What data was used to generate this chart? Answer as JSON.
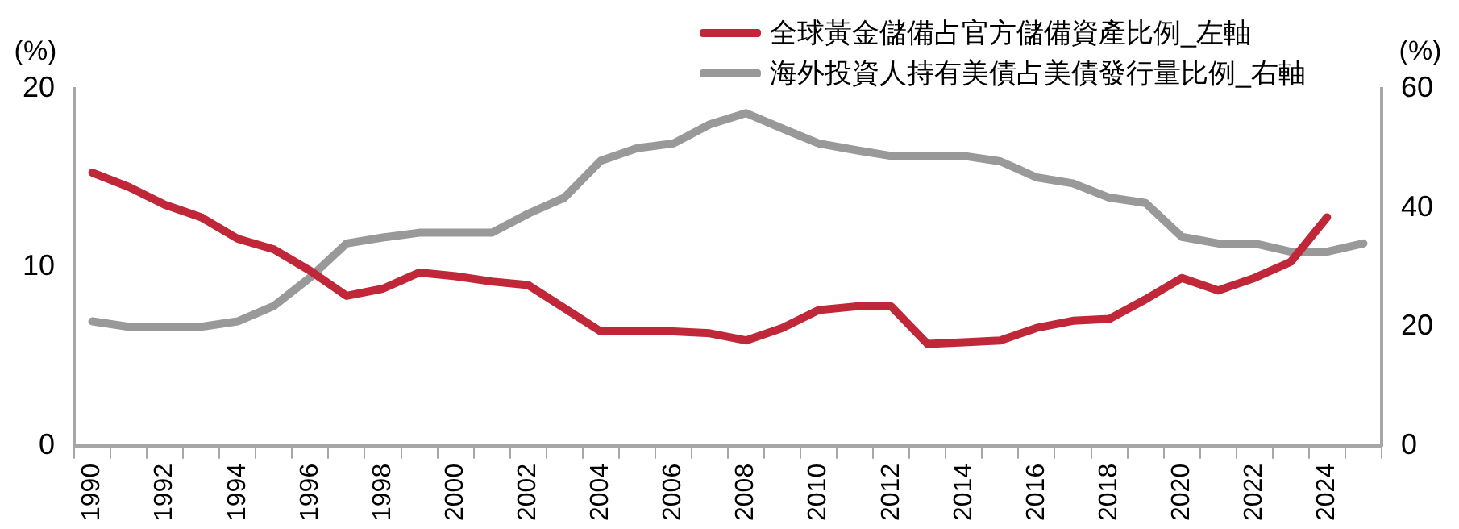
{
  "chart_data": {
    "type": "line",
    "categories": [
      "1990",
      null,
      "1992",
      null,
      "1994",
      null,
      "1996",
      null,
      "1998",
      null,
      "2000",
      null,
      "2002",
      null,
      "2004",
      null,
      "2006",
      null,
      "2008",
      null,
      "2010",
      null,
      "2012",
      null,
      "2014",
      null,
      "2016",
      null,
      "2018",
      null,
      "2020",
      null,
      "2022",
      null,
      "2024",
      null
    ],
    "series": [
      {
        "name": "全球黃金儲備占官方儲備資產比例_左軸",
        "color": "#c0283a",
        "values": [
          15.3,
          14.5,
          13.5,
          12.8,
          11.6,
          11.0,
          9.8,
          8.4,
          8.8,
          9.7,
          9.5,
          9.2,
          9.0,
          7.7,
          6.4,
          6.4,
          6.4,
          6.3,
          5.9,
          6.6,
          7.6,
          7.8,
          7.8,
          5.7,
          5.8,
          5.9,
          6.6,
          7.0,
          7.1,
          8.2,
          9.4,
          8.7,
          9.4,
          10.3,
          12.8,
          null
        ]
      },
      {
        "name": "海外投資人持有美債占美債發行量比例_右軸",
        "color": "#999999",
        "axis": "y2",
        "values": [
          20.9,
          20.0,
          20.0,
          20.0,
          20.9,
          23.5,
          28.3,
          34.0,
          35.0,
          35.8,
          35.8,
          35.8,
          39.0,
          41.7,
          47.9,
          50.0,
          50.8,
          54.0,
          55.9,
          53.3,
          50.8,
          49.7,
          48.7,
          48.7,
          48.7,
          47.8,
          45.1,
          44.1,
          41.7,
          40.8,
          35.1,
          34.0,
          34.0,
          32.6,
          32.6,
          34.0
        ]
      }
    ],
    "ylabel": "(%)",
    "y2label": "(%)",
    "ylim": [
      0,
      20
    ],
    "yticks": [
      0,
      10,
      20
    ],
    "y2lim": [
      0,
      60
    ],
    "y2ticks": [
      0,
      20,
      40,
      60
    ],
    "grid": false,
    "legend": "top right",
    "marker": "none",
    "line_style": "solid"
  }
}
